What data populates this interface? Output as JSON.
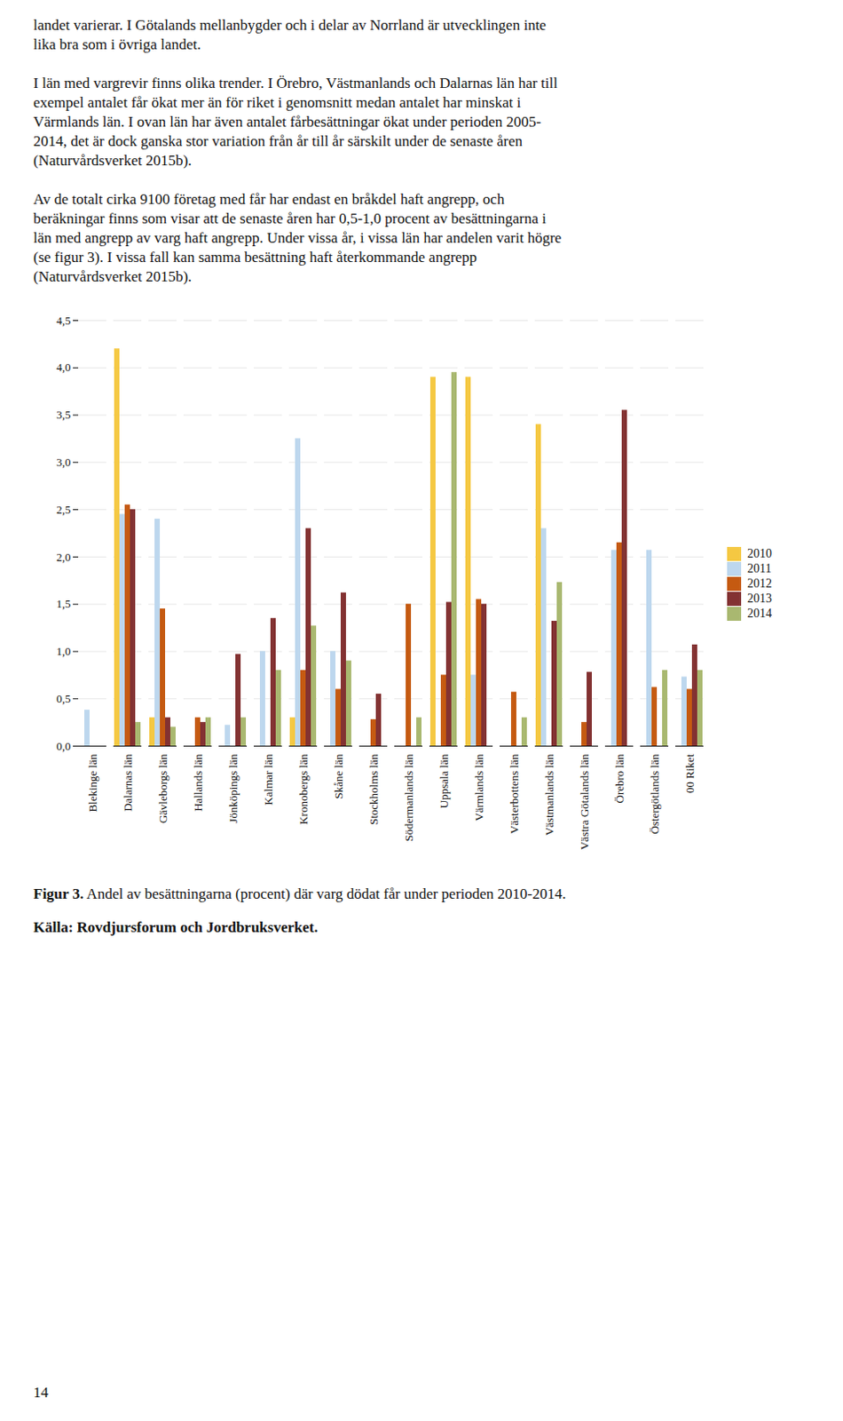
{
  "page_text": [
    [
      "landet varierar. I Götalands mellanbygder och i delar av Norrland är utvecklingen inte",
      "lika bra som i övriga landet."
    ],
    [
      "I län med vargrevir finns olika trender. I Örebro, Västmanlands och Dalarnas län har till",
      "exempel antalet får ökat mer än för riket i genomsnitt medan antalet har minskat i",
      "Värmlands län. I ovan län har även antalet fårbesättningar ökat under perioden 2005-",
      "2014, det är dock ganska stor variation från år till år särskilt under de senaste åren",
      "(Naturvårdsverket 2015b)."
    ],
    [
      "Av de totalt cirka 9100 företag med får har endast en bråkdel haft angrepp, och",
      "beräkningar finns som visar att de senaste åren har 0,5-1,0 procent av besättningarna i",
      "län med angrepp av varg haft angrepp. Under vissa år, i vissa län har andelen varit högre",
      "(se figur 3). I vissa fall kan samma besättning haft återkommande angrepp",
      "(Naturvårdsverket 2015b)."
    ]
  ],
  "page_number": "14",
  "chart_data": {
    "type": "bar",
    "title": "Figur 3. Andel av besättningarna (procent) där varg dödat får under perioden 2010-2014.",
    "caption": "Källa: Rovdjursforum och Jordbruksverket.",
    "categories": [
      "Blekinge län",
      "Dalarnas län",
      "Gävleborgs län",
      "Hallands län",
      "Jönköpings län",
      "Kalmar län",
      "Kronobergs län",
      "Skåne län",
      "Stockholms län",
      "Södermanlands län",
      "Uppsala län",
      "Värmlands län",
      "Västerbottens län",
      "Västmanlands län",
      "Västra Götalands län",
      "Örebro län",
      "Östergötlands län",
      "00 Riket"
    ],
    "series": [
      {
        "name": "2010",
        "color": "#F5C842",
        "values": [
          0.0,
          4.2,
          0.3,
          0.0,
          0.0,
          0.0,
          0.3,
          0.0,
          0.0,
          0.0,
          3.9,
          3.9,
          0.0,
          3.4,
          0.0,
          0.0,
          0.0,
          0.0
        ]
      },
      {
        "name": "2011",
        "color": "#BDD7EE",
        "values": [
          0.38,
          2.45,
          2.4,
          0.0,
          0.22,
          1.0,
          3.25,
          1.0,
          0.0,
          0.0,
          0.0,
          0.75,
          0.0,
          2.3,
          0.0,
          2.07,
          2.07,
          0.73
        ]
      },
      {
        "name": "2012",
        "color": "#C55A11",
        "values": [
          0.0,
          2.55,
          1.45,
          0.3,
          0.0,
          0.0,
          0.8,
          0.6,
          0.28,
          1.5,
          0.75,
          1.55,
          0.57,
          0.0,
          0.25,
          2.15,
          0.62,
          0.6
        ]
      },
      {
        "name": "2013",
        "color": "#833232",
        "values": [
          0.0,
          2.5,
          0.3,
          0.25,
          0.97,
          1.35,
          2.3,
          1.62,
          0.55,
          0.0,
          1.52,
          1.5,
          0.0,
          1.32,
          0.78,
          3.55,
          0.0,
          1.07
        ]
      },
      {
        "name": "2014",
        "color": "#A9B870",
        "values": [
          0.0,
          0.25,
          0.2,
          0.3,
          0.3,
          0.8,
          1.27,
          0.9,
          0.0,
          0.3,
          3.95,
          0.0,
          0.3,
          1.73,
          0.0,
          0.0,
          0.8,
          0.8
        ]
      }
    ],
    "ylim": [
      0,
      4.5
    ],
    "yticks": [
      {
        "value": 0.0,
        "label": "0,0"
      },
      {
        "value": 0.5,
        "label": "0,5"
      },
      {
        "value": 1.0,
        "label": "1,0"
      },
      {
        "value": 1.5,
        "label": "1,5"
      },
      {
        "value": 2.0,
        "label": "2,0"
      },
      {
        "value": 2.5,
        "label": "2,5"
      },
      {
        "value": 3.0,
        "label": "3,0"
      },
      {
        "value": 3.5,
        "label": "3,5"
      },
      {
        "value": 4.0,
        "label": "4,0"
      },
      {
        "value": 4.5,
        "label": "4,5"
      }
    ],
    "grid": true,
    "legend": "right"
  }
}
